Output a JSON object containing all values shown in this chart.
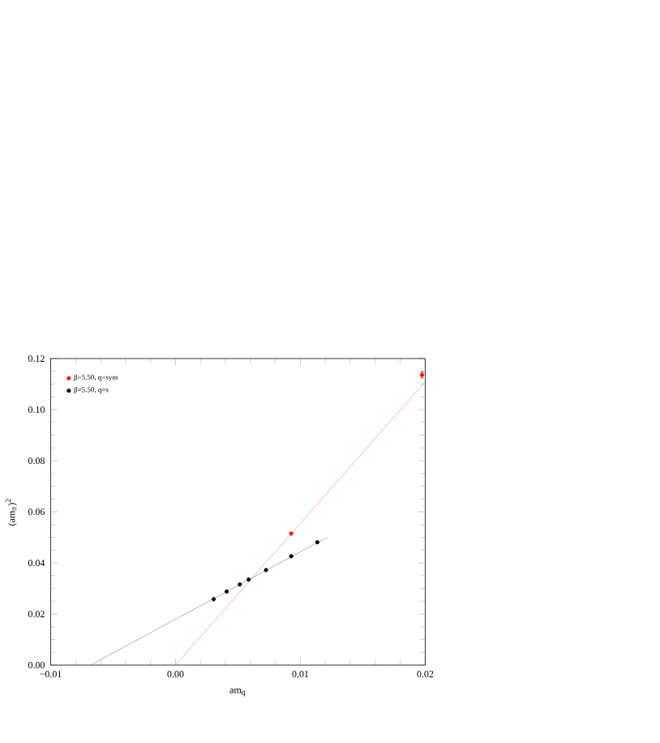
{
  "chart_data": {
    "type": "scatter",
    "xlabel": "am$_{q}$",
    "ylabel": "(am$_{π}$)$^{2}$",
    "xlim": [
      -0.01,
      0.02
    ],
    "ylim": [
      0,
      0.12
    ],
    "xticks": [
      {
        "value": -0.01,
        "label": "−0.01"
      },
      {
        "value": 0,
        "label": "0.00"
      },
      {
        "value": 0.01,
        "label": "0.01"
      },
      {
        "value": 0.02,
        "label": "0.02"
      }
    ],
    "yticks": [
      {
        "value": 0,
        "label": "0.00"
      },
      {
        "value": 0.02,
        "label": "0.02"
      },
      {
        "value": 0.04,
        "label": "0.04"
      },
      {
        "value": 0.06,
        "label": "0.06"
      },
      {
        "value": 0.08,
        "label": "0.08"
      },
      {
        "value": 0.1,
        "label": "0.10"
      },
      {
        "value": 0.12,
        "label": "0.12"
      }
    ],
    "grid": false,
    "legend": "top left",
    "series": [
      {
        "name": "β=5.50, q=sym",
        "color": "#ff0000",
        "marker": "circle",
        "x": [
          0.00927,
          0.01975
        ],
        "values": [
          0.0515,
          0.1136
        ],
        "errors": [
          null,
          0.0012
        ]
      },
      {
        "name": "β=5.50, q=s",
        "color": "#000000",
        "marker": "circle",
        "x": [
          0.00306,
          0.0041,
          0.00515,
          0.00586,
          0.00725,
          0.00927,
          0.01136
        ],
        "values": [
          0.0258,
          0.0288,
          0.0316,
          0.0335,
          0.0372,
          0.0426,
          0.0481
        ]
      },
      {
        "type": "line",
        "color": "#ff8080",
        "x": [
          0.0,
          0.02
        ],
        "values": [
          0.0,
          0.111
        ]
      },
      {
        "type": "line",
        "color": "#808080",
        "x": [
          -0.0068,
          0.01215
        ],
        "values": [
          0.0,
          0.05
        ]
      }
    ]
  }
}
